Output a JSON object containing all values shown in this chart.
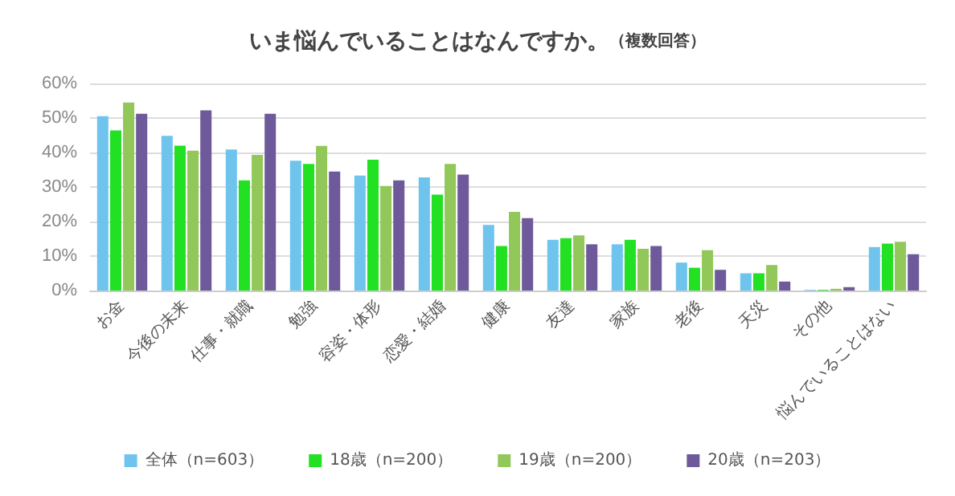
{
  "chart_data": {
    "type": "bar",
    "title": "いま悩んでいることはなんですか。",
    "subtitle": "（複数回答）",
    "categories": [
      "お金",
      "今後の未来",
      "仕事・就職",
      "勉強",
      "容姿・体形",
      "恋愛・結婚",
      "健康",
      "友達",
      "家族",
      "老後",
      "天災",
      "その他",
      "悩んでいることはない"
    ],
    "series": [
      {
        "name": "全体（n=603）",
        "color": "#6fc4ee",
        "values": [
          50.5,
          44.8,
          40.9,
          37.6,
          33.3,
          32.8,
          19,
          14.7,
          13.4,
          8.1,
          5,
          0.2,
          12.6
        ]
      },
      {
        "name": "18歳（n=200）",
        "color": "#22e022",
        "values": [
          46.4,
          42,
          31.9,
          36.7,
          37.9,
          27.8,
          12.9,
          15.2,
          14.7,
          6.6,
          5,
          0.2,
          13.6
        ]
      },
      {
        "name": "19歳（n=200）",
        "color": "#92c85a",
        "values": [
          54.5,
          40.5,
          39.3,
          41.9,
          30.3,
          36.7,
          22.8,
          16,
          12.1,
          11.7,
          7.4,
          0.5,
          14.1
        ]
      },
      {
        "name": "20歳（n=203）",
        "color": "#6e5a9a",
        "values": [
          51.2,
          52.2,
          51.2,
          34.5,
          31.9,
          33.6,
          21,
          13.4,
          12.9,
          6,
          2.6,
          1,
          10.5
        ]
      }
    ],
    "ylim": [
      0,
      60
    ],
    "yticks": [
      {
        "value": 0,
        "label": "0%"
      },
      {
        "value": 10,
        "label": "10%"
      },
      {
        "value": 20,
        "label": "20%"
      },
      {
        "value": 30,
        "label": "30%"
      },
      {
        "value": 40,
        "label": "40%"
      },
      {
        "value": 50,
        "label": "50%"
      },
      {
        "value": 60,
        "label": "60%"
      }
    ],
    "grid": "y",
    "legend": "bottom"
  }
}
